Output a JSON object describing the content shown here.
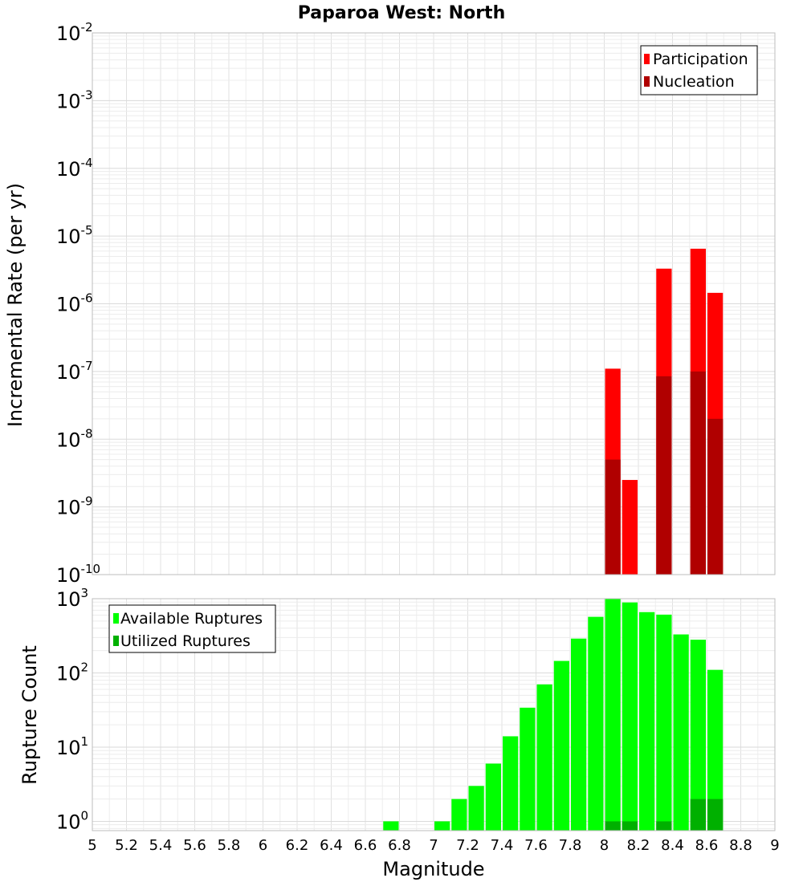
{
  "chart_data": [
    {
      "type": "bar",
      "scale": "log",
      "title": "Paparoa West: North",
      "xlabel": "",
      "ylabel": "Incremental Rate (per yr)",
      "xlim": [
        5,
        9
      ],
      "ylim": [
        1e-10,
        0.01
      ],
      "y_tick_exponents": [
        "-10",
        "-9",
        "-8",
        "-7",
        "-6",
        "-5",
        "-4",
        "-3",
        "-2"
      ],
      "y_tick_base": "10",
      "grid": true,
      "legend_position": "top-right",
      "bar_width": 0.1,
      "series": [
        {
          "name": "Participation",
          "color": "#ff0000",
          "x": [
            8.05,
            8.15,
            8.35,
            8.55,
            8.65
          ],
          "values": [
            1.1e-07,
            2.5e-09,
            3.3e-06,
            6.5e-06,
            1.45e-06
          ]
        },
        {
          "name": "Nucleation",
          "color": "#b00000",
          "x": [
            8.05,
            8.35,
            8.55,
            8.65
          ],
          "values": [
            5e-09,
            8.5e-08,
            1e-07,
            2e-08
          ]
        }
      ]
    },
    {
      "type": "bar",
      "scale": "log",
      "title": "",
      "xlabel": "Magnitude",
      "ylabel": "Rupture Count",
      "xlim": [
        5,
        9
      ],
      "ylim": [
        0.75,
        1000
      ],
      "y_tick_exponents": [
        "0",
        "1",
        "2",
        "3"
      ],
      "y_tick_base": "10",
      "x_tick_labels": [
        "5",
        "5.2",
        "5.4",
        "5.6",
        "5.8",
        "6",
        "6.2",
        "6.4",
        "6.6",
        "6.8",
        "7",
        "7.2",
        "7.4",
        "7.6",
        "7.8",
        "8",
        "8.2",
        "8.4",
        "8.6",
        "8.8",
        "9"
      ],
      "grid": true,
      "legend_position": "top-left",
      "bar_width": 0.1,
      "series": [
        {
          "name": "Available Ruptures",
          "color": "#00ff00",
          "x": [
            6.75,
            7.05,
            7.15,
            7.25,
            7.35,
            7.45,
            7.55,
            7.65,
            7.75,
            7.85,
            7.95,
            8.05,
            8.15,
            8.25,
            8.35,
            8.45,
            8.55,
            8.65
          ],
          "values": [
            1,
            1,
            2,
            3,
            6,
            14,
            34,
            70,
            145,
            290,
            570,
            1000,
            890,
            660,
            610,
            330,
            280,
            110
          ]
        },
        {
          "name": "Utilized Ruptures",
          "color": "#00b000",
          "x": [
            8.05,
            8.15,
            8.35,
            8.55,
            8.65
          ],
          "values": [
            1,
            1,
            1,
            2,
            2
          ]
        }
      ]
    }
  ]
}
